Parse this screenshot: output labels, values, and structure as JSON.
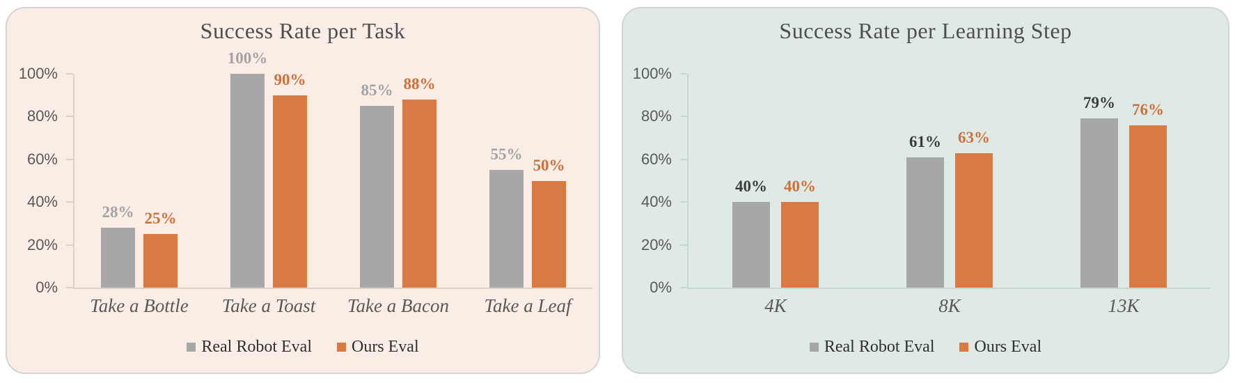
{
  "page": {
    "background": "#ffffff"
  },
  "chart_data": [
    {
      "type": "bar",
      "title": "Success Rate per Task",
      "categories": [
        "Take a Bottle",
        "Take a Toast",
        "Take a Bacon",
        "Take a Leaf"
      ],
      "series": [
        {
          "name": "Real Robot Eval",
          "values": [
            28,
            100,
            85,
            55
          ],
          "bar_color": "#a7a7a7",
          "label_color": "#a3a3a3"
        },
        {
          "name": "Ours Eval",
          "values": [
            25,
            90,
            88,
            50
          ],
          "bar_color": "#d87a44",
          "label_color": "#cf703a"
        }
      ],
      "value_labels": [
        [
          "28%",
          "100%",
          "85%",
          "55%"
        ],
        [
          "25%",
          "90%",
          "88%",
          "50%"
        ]
      ],
      "y_axis": {
        "ticks": [
          "0%",
          "20%",
          "40%",
          "60%",
          "80%",
          "100%"
        ],
        "ylim": [
          0,
          100
        ]
      },
      "grid": "off",
      "legend_position": "bottom",
      "panel_background": "#faede5",
      "axis_color": "#ddd2c9",
      "value_suffix": "%"
    },
    {
      "type": "bar",
      "title": "Success Rate per Learning Step",
      "categories": [
        "4K",
        "8K",
        "13K"
      ],
      "series": [
        {
          "name": "Real Robot Eval",
          "values": [
            40,
            61,
            79
          ],
          "bar_color": "#a7a7a7",
          "label_color": "#3b3b3b"
        },
        {
          "name": "Ours Eval",
          "values": [
            40,
            63,
            76
          ],
          "bar_color": "#d87a44",
          "label_color": "#cf703a"
        }
      ],
      "value_labels": [
        [
          "40%",
          "61%",
          "79%"
        ],
        [
          "40%",
          "63%",
          "76%"
        ]
      ],
      "y_axis": {
        "ticks": [
          "0%",
          "20%",
          "40%",
          "60%",
          "80%",
          "100%"
        ],
        "ylim": [
          0,
          100
        ]
      },
      "grid": "off",
      "legend_position": "bottom",
      "panel_background": "#dfeae7",
      "axis_color": "#c9d7d4",
      "value_suffix": "%"
    }
  ]
}
